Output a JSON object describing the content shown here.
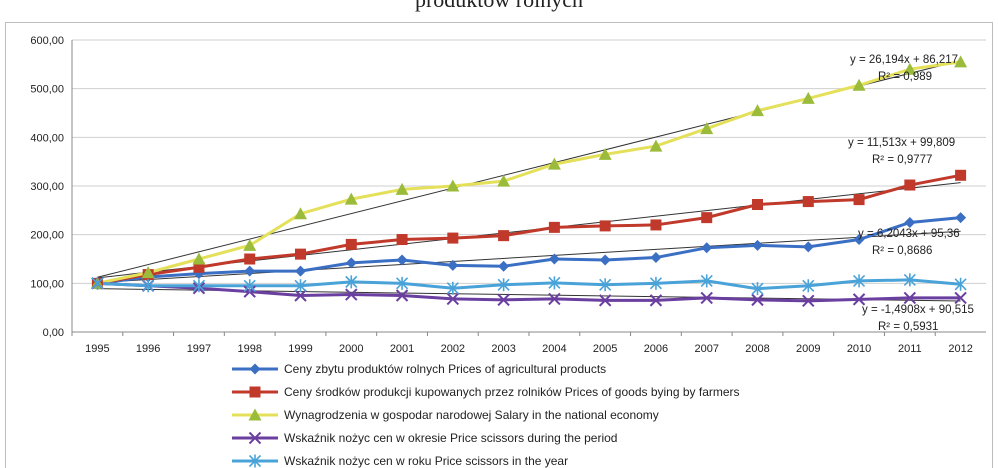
{
  "chart_data": {
    "type": "line",
    "title": "produktów rolnych",
    "x": [
      "1995",
      "1996",
      "1997",
      "1998",
      "1999",
      "2000",
      "2001",
      "2002",
      "2003",
      "2004",
      "2005",
      "2006",
      "2007",
      "2008",
      "2009",
      "2010",
      "2011",
      "2012"
    ],
    "yticks": [
      "0,00",
      "100,00",
      "200,00",
      "300,00",
      "400,00",
      "500,00",
      "600,00"
    ],
    "ylim": [
      0,
      600
    ],
    "grid": true,
    "legend_position": "bottom",
    "series": [
      {
        "name": "Ceny zbytu produktów rolnych   Prices of agricultural products",
        "color": "#3a6fc4",
        "marker": "diamond",
        "values": [
          100,
          113,
          120,
          125,
          125,
          142,
          148,
          137,
          135,
          150,
          148,
          153,
          173,
          178,
          175,
          190,
          225,
          235
        ]
      },
      {
        "name": "Ceny środków produkcji kupowanych przez rolników Prices of goods bying by farmers",
        "color": "#c0392b",
        "marker": "square",
        "values": [
          100,
          118,
          133,
          150,
          160,
          180,
          190,
          193,
          198,
          215,
          218,
          220,
          235,
          262,
          268,
          272,
          302,
          322
        ]
      },
      {
        "name": "Wynagrodzenia w gospodar narodowej Salary in the national economy",
        "color": "#e4e05a",
        "marker": "triangle",
        "values": [
          100,
          122,
          150,
          178,
          243,
          273,
          293,
          300,
          310,
          345,
          365,
          382,
          418,
          455,
          480,
          507,
          540,
          555
        ]
      },
      {
        "name": "Wskaźnik nożyc cen w okresie Price scissors during the period",
        "color": "#6b3fa0",
        "marker": "x",
        "values": [
          100,
          95,
          90,
          83,
          75,
          77,
          75,
          68,
          66,
          68,
          65,
          65,
          70,
          66,
          64,
          67,
          70,
          70
        ]
      },
      {
        "name": "Wskaźnik nożyc cen w roku Price scissors in the year",
        "color": "#4aa3d8",
        "marker": "star",
        "values": [
          100,
          95,
          95,
          95,
          95,
          103,
          100,
          90,
          97,
          101,
          97,
          100,
          105,
          89,
          95,
          105,
          107,
          98
        ]
      }
    ],
    "trendlines": [
      {
        "slope": 26.194,
        "intercept": 86.217,
        "equation": "y = 26,194x + 86,217",
        "r2": "R² = 0,989"
      },
      {
        "slope": 11.513,
        "intercept": 99.809,
        "equation": "y = 11,513x + 99,809",
        "r2": "R² = 0,9777"
      },
      {
        "slope": 6.2043,
        "intercept": 95.36,
        "equation": "y = 6,2043x + 95,36",
        "r2": "R² = 0,8686"
      },
      {
        "slope": -1.4908,
        "intercept": 90.515,
        "equation": "y = -1,4908x + 90,515",
        "r2": "R² = 0,5931"
      }
    ]
  }
}
